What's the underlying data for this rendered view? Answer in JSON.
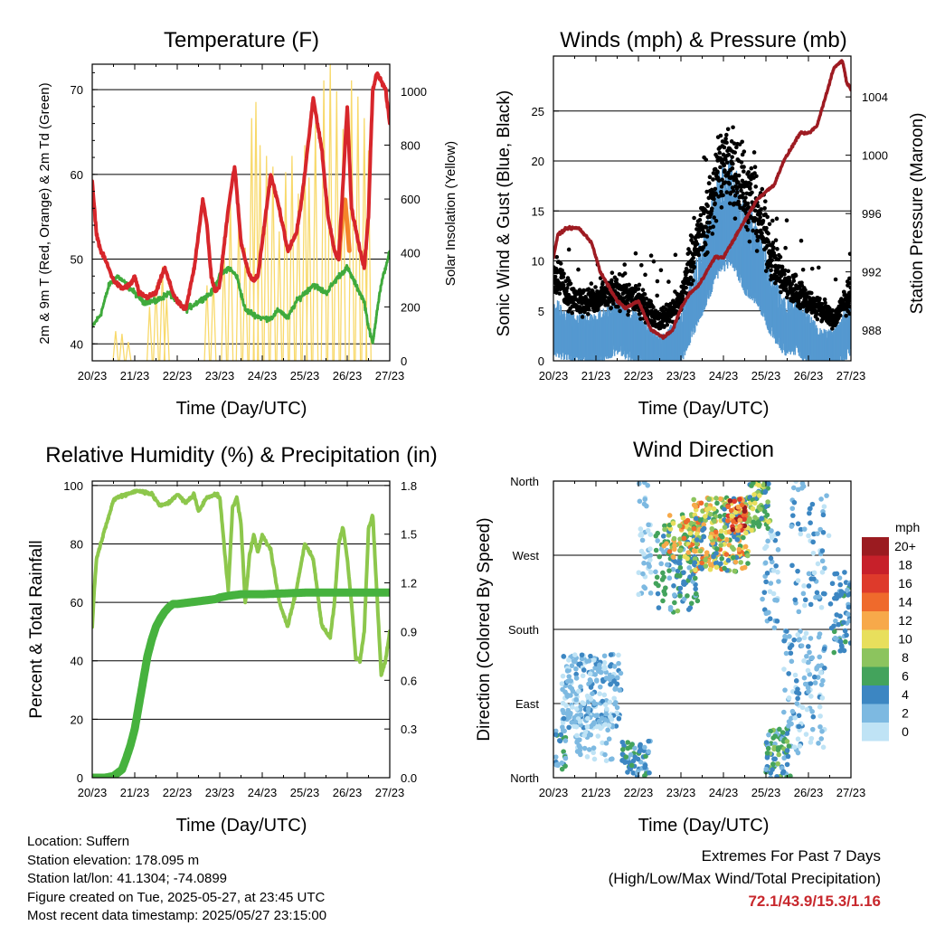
{
  "colors": {
    "t2m": "#d7262b",
    "t9m": "#f4852a",
    "td": "#3faa3c",
    "solar": "#f8d96b",
    "wind": "#5599d0",
    "gust": "#000000",
    "pressure": "#9e1b22",
    "rh": "#8dc74c",
    "rain": "#46b23e",
    "extremes": "#c8282d"
  },
  "x_tick_labels": [
    "20/23",
    "21/23",
    "22/23",
    "23/23",
    "24/23",
    "25/23",
    "26/23",
    "27/23"
  ],
  "info": {
    "location": "Location: Suffern",
    "elevation": "Station elevation: 178.095 m",
    "latlon": "Station lat/lon: 41.1304; -74.0899",
    "created": "Figure created on Tue, 2025-05-27, at 23:45 UTC",
    "recent": "Most recent data timestamp: 2025/05/27 23:15:00"
  },
  "extremes": {
    "line1": "Extremes For Past 7 Days",
    "line2": "(High/Low/Max Wind/Total Precipitation)",
    "values": "72.1/43.9/15.3/1.16"
  },
  "chart_data": [
    {
      "type": "line",
      "id": "temperature",
      "title": "Temperature (F)",
      "xlabel": "Time (Day/UTC)",
      "ylabel": "2m & 9m T (Red, Orange) & 2m Td (Green)",
      "y2label": "Solar Insolation (Yellow)",
      "xlim": [
        0,
        7
      ],
      "ylim": [
        38,
        73
      ],
      "y2lim": [
        0,
        1100
      ],
      "yticks": [
        40,
        50,
        60,
        70
      ],
      "y2ticks": [
        0,
        200,
        400,
        600,
        800,
        1000
      ],
      "grid": true,
      "series": [
        {
          "key": "t2m",
          "axis": "left",
          "x": [
            0,
            0.1,
            0.2,
            0.3,
            0.5,
            0.7,
            0.9,
            1.0,
            1.1,
            1.3,
            1.5,
            1.7,
            1.9,
            2.0,
            2.2,
            2.4,
            2.6,
            2.7,
            2.8,
            2.9,
            3.0,
            3.2,
            3.35,
            3.5,
            3.7,
            3.8,
            3.9,
            4.0,
            4.2,
            4.4,
            4.6,
            4.8,
            4.9,
            5.0,
            5.2,
            5.4,
            5.55,
            5.7,
            5.8,
            5.9,
            6.0,
            6.1,
            6.3,
            6.4,
            6.5,
            6.55,
            6.6,
            6.7,
            6.8,
            6.9,
            7.0
          ],
          "y": [
            59,
            53,
            51,
            50,
            47.5,
            46.5,
            47,
            48,
            46,
            45.5,
            46,
            49,
            46,
            45,
            44,
            49,
            57,
            54,
            48,
            46,
            47,
            56,
            61,
            52,
            48,
            47.5,
            48,
            52,
            60,
            56,
            51,
            53,
            56,
            60,
            69,
            63,
            55,
            51,
            50,
            59,
            68,
            56,
            51,
            49,
            55,
            63,
            70,
            72,
            71,
            70,
            66
          ]
        },
        {
          "key": "t9m",
          "axis": "left",
          "x": [
            5.8,
            5.85,
            5.9,
            5.95,
            6.0,
            6.05
          ],
          "y": [
            50,
            53,
            56,
            57,
            54,
            51
          ]
        },
        {
          "key": "td",
          "axis": "left",
          "x": [
            0,
            0.2,
            0.4,
            0.6,
            0.8,
            1.0,
            1.2,
            1.5,
            1.8,
            2.0,
            2.2,
            2.5,
            2.8,
            3.0,
            3.2,
            3.4,
            3.6,
            4.0,
            4.2,
            4.4,
            4.6,
            4.8,
            5.0,
            5.2,
            5.5,
            5.8,
            6.0,
            6.2,
            6.4,
            6.5,
            6.6,
            6.7,
            6.8,
            6.9,
            7.0
          ],
          "y": [
            42,
            43.5,
            47,
            48,
            47,
            46,
            45,
            45,
            46,
            45,
            44,
            45,
            46,
            48,
            49,
            48,
            44,
            43,
            43,
            44,
            43,
            45,
            46,
            47,
            46,
            48,
            49,
            47,
            45,
            42,
            40,
            44,
            47,
            49,
            51
          ]
        },
        {
          "key": "solar",
          "axis": "right",
          "peaks": [
            [
              0.55,
              110
            ],
            [
              0.7,
              100
            ],
            [
              0.85,
              70
            ],
            [
              1.35,
              200
            ],
            [
              1.5,
              280
            ],
            [
              1.65,
              350
            ],
            [
              1.75,
              230
            ],
            [
              2.7,
              280
            ],
            [
              2.85,
              310
            ],
            [
              3.1,
              420
            ],
            [
              3.25,
              600
            ],
            [
              3.45,
              560
            ],
            [
              3.6,
              420
            ],
            [
              3.75,
              900
            ],
            [
              3.85,
              960
            ],
            [
              3.95,
              800
            ],
            [
              4.1,
              760
            ],
            [
              4.25,
              720
            ],
            [
              4.4,
              480
            ],
            [
              4.55,
              700
            ],
            [
              4.7,
              760
            ],
            [
              4.85,
              620
            ],
            [
              5.0,
              800
            ],
            [
              5.1,
              680
            ],
            [
              5.25,
              880
            ],
            [
              5.45,
              1040
            ],
            [
              5.6,
              1100
            ],
            [
              5.75,
              1000
            ],
            [
              5.9,
              860
            ],
            [
              6.1,
              1040
            ],
            [
              6.25,
              980
            ],
            [
              6.4,
              900
            ],
            [
              6.5,
              780
            ]
          ]
        }
      ]
    },
    {
      "type": "line",
      "id": "winds",
      "title": "Winds (mph) & Pressure (mb)",
      "xlabel": "Time (Day/UTC)",
      "ylabel": "Sonic Wind & Gust (Blue, Black)",
      "y2label": "Station Pressure (Maroon)",
      "xlim": [
        0,
        7
      ],
      "ylim": [
        0,
        30.5
      ],
      "y2lim": [
        985.9,
        1006.8
      ],
      "yticks": [
        0,
        5,
        10,
        15,
        20,
        25
      ],
      "y2ticks": [
        988,
        992,
        996,
        1000,
        1004
      ],
      "grid": true,
      "series": [
        {
          "key": "wind",
          "axis": "left",
          "x": [
            0,
            0.5,
            1.0,
            1.5,
            2.0,
            2.5,
            3.0,
            3.3,
            3.6,
            3.9,
            4.2,
            4.5,
            4.8,
            5.1,
            5.4,
            5.7,
            6.0,
            6.3,
            6.6,
            7.0
          ],
          "y": [
            4,
            3,
            3,
            4,
            3,
            1.5,
            3,
            6,
            9,
            12,
            13,
            10,
            9,
            6,
            4,
            4,
            3,
            2,
            2,
            4
          ]
        },
        {
          "key": "gust",
          "axis": "left",
          "x": [
            0,
            0.5,
            1.0,
            1.5,
            2.0,
            2.5,
            3.0,
            3.3,
            3.6,
            3.9,
            4.2,
            4.5,
            4.8,
            5.1,
            5.4,
            5.7,
            6.0,
            6.3,
            6.6,
            7.0
          ],
          "y": [
            9,
            6,
            6,
            7,
            6,
            4,
            6,
            11,
            14,
            19,
            20,
            17,
            15,
            11,
            8,
            7,
            6,
            5,
            4,
            7
          ]
        },
        {
          "key": "pressure",
          "axis": "right",
          "x": [
            0,
            0.1,
            0.3,
            0.6,
            0.9,
            1.1,
            1.3,
            1.5,
            1.7,
            2.0,
            2.3,
            2.6,
            2.8,
            3.0,
            3.2,
            3.4,
            3.6,
            3.8,
            4.0,
            4.2,
            4.4,
            4.6,
            4.8,
            5.0,
            5.2,
            5.4,
            5.6,
            5.8,
            6.0,
            6.2,
            6.4,
            6.6,
            6.8,
            6.9,
            7.0
          ],
          "y": [
            993,
            994.5,
            995,
            995,
            994,
            992,
            991,
            990,
            989.5,
            990,
            988,
            987.5,
            988,
            989.5,
            990.5,
            991,
            992,
            993,
            993,
            994,
            995,
            996,
            997,
            997.5,
            998,
            999.5,
            1000.5,
            1001.5,
            1001.5,
            1002,
            1004,
            1006,
            1006.5,
            1005,
            1004.5
          ]
        }
      ]
    },
    {
      "type": "line",
      "id": "humidity",
      "title": "Relative Humidity (%) & Precipitation (in)",
      "xlabel": "Time (Day/UTC)",
      "ylabel": "Percent & Total Rainfall",
      "xlim": [
        0,
        7
      ],
      "ylim": [
        0,
        101.5
      ],
      "y2lim": [
        0,
        1.827
      ],
      "yticks": [
        0,
        20,
        40,
        60,
        80,
        100
      ],
      "y2ticks": [
        0.0,
        0.3,
        0.6,
        0.9,
        1.2,
        1.5,
        1.8
      ],
      "y2tick_labels": [
        "0.0",
        "0.3",
        "0.6",
        "0.9",
        "1.2",
        "1.5",
        "1.8"
      ],
      "grid": true,
      "series": [
        {
          "key": "rh",
          "axis": "left",
          "x": [
            0,
            0.05,
            0.1,
            0.2,
            0.3,
            0.4,
            0.5,
            0.6,
            0.8,
            1.0,
            1.2,
            1.4,
            1.6,
            1.8,
            2.0,
            2.2,
            2.4,
            2.5,
            2.7,
            2.9,
            3.0,
            3.2,
            3.3,
            3.4,
            3.5,
            3.6,
            3.7,
            3.8,
            3.9,
            4.0,
            4.2,
            4.4,
            4.6,
            4.8,
            5.0,
            5.2,
            5.4,
            5.6,
            5.7,
            5.8,
            5.9,
            6.0,
            6.1,
            6.2,
            6.3,
            6.4,
            6.5,
            6.6,
            6.8,
            6.9,
            7.0
          ],
          "y": [
            52,
            65,
            75,
            80,
            85,
            90,
            95,
            96,
            97,
            98,
            98,
            97,
            93,
            94,
            97,
            94,
            97,
            91,
            96,
            97,
            96,
            64,
            92,
            96,
            87,
            60,
            76,
            83,
            77,
            83,
            78,
            60,
            52,
            64,
            80,
            75,
            52,
            48,
            60,
            80,
            86,
            75,
            60,
            41,
            40,
            50,
            85,
            90,
            35,
            40,
            50
          ]
        },
        {
          "key": "rain",
          "axis": "right",
          "x": [
            0,
            0.1,
            0.3,
            0.5,
            0.7,
            0.8,
            0.9,
            1.0,
            1.1,
            1.2,
            1.3,
            1.4,
            1.5,
            1.6,
            1.7,
            1.8,
            1.9,
            2.0,
            2.3,
            2.6,
            2.9,
            3.0,
            3.2,
            3.5,
            4.0,
            5.0,
            6.0,
            7.0
          ],
          "y": [
            0,
            0,
            0,
            0.01,
            0.05,
            0.12,
            0.2,
            0.3,
            0.45,
            0.6,
            0.75,
            0.85,
            0.93,
            0.98,
            1.02,
            1.05,
            1.07,
            1.07,
            1.08,
            1.09,
            1.1,
            1.11,
            1.12,
            1.13,
            1.13,
            1.14,
            1.14,
            1.14
          ]
        }
      ]
    },
    {
      "type": "scatter",
      "id": "direction",
      "title": "Wind Direction",
      "xlabel": "Time (Day/UTC)",
      "ylabel": "Direction (Colored By Speed)",
      "xlim": [
        0,
        7
      ],
      "ylim": [
        0,
        360
      ],
      "ytick_labels": [
        "North",
        "East",
        "South",
        "West",
        "North"
      ],
      "grid": true,
      "legend": {
        "title": "mph",
        "labels": [
          "20+",
          "18",
          "16",
          "14",
          "12",
          "10",
          "8",
          "6",
          "4",
          "2",
          "0"
        ],
        "colors": [
          "#9b1b20",
          "#c7202a",
          "#de3a2b",
          "#ef6a2c",
          "#f7a94a",
          "#e8df5c",
          "#8cc45e",
          "#43a35c",
          "#3c86c2",
          "#7db9e1",
          "#bfe3f5"
        ]
      },
      "clusters": [
        {
          "x": [
            0.05,
            0.3
          ],
          "dir": [
            10,
            60
          ],
          "speed": [
            2,
            6
          ],
          "n": 25
        },
        {
          "x": [
            0.2,
            1.6
          ],
          "dir": [
            60,
            150
          ],
          "speed": [
            0,
            4
          ],
          "n": 230
        },
        {
          "x": [
            0.5,
            1.4
          ],
          "dir": [
            20,
            80
          ],
          "speed": [
            0,
            3
          ],
          "n": 60
        },
        {
          "x": [
            1.6,
            2.3
          ],
          "dir": [
            0,
            45
          ],
          "speed": [
            2,
            6
          ],
          "n": 60
        },
        {
          "x": [
            2.0,
            2.3
          ],
          "dir": [
            220,
            360
          ],
          "speed": [
            0,
            3
          ],
          "n": 40
        },
        {
          "x": [
            2.4,
            3.4
          ],
          "dir": [
            200,
            300
          ],
          "speed": [
            2,
            8
          ],
          "n": 120
        },
        {
          "x": [
            2.6,
            3.4
          ],
          "dir": [
            265,
            320
          ],
          "speed": [
            6,
            14
          ],
          "n": 60
        },
        {
          "x": [
            3.3,
            4.6
          ],
          "dir": [
            250,
            340
          ],
          "speed": [
            3,
            14
          ],
          "n": 260
        },
        {
          "x": [
            4.1,
            4.5
          ],
          "dir": [
            300,
            340
          ],
          "speed": [
            10,
            20
          ],
          "n": 40
        },
        {
          "x": [
            4.6,
            5.1
          ],
          "dir": [
            300,
            360
          ],
          "speed": [
            4,
            10
          ],
          "n": 70
        },
        {
          "x": [
            4.9,
            5.3
          ],
          "dir": [
            180,
            300
          ],
          "speed": [
            0,
            4
          ],
          "n": 40
        },
        {
          "x": [
            5.0,
            5.6
          ],
          "dir": [
            0,
            60
          ],
          "speed": [
            2,
            8
          ],
          "n": 80
        },
        {
          "x": [
            5.4,
            6.4
          ],
          "dir": [
            30,
            180
          ],
          "speed": [
            0,
            4
          ],
          "n": 120
        },
        {
          "x": [
            5.6,
            6.5
          ],
          "dir": [
            200,
            360
          ],
          "speed": [
            0,
            5
          ],
          "n": 70
        },
        {
          "x": [
            6.5,
            7.0
          ],
          "dir": [
            150,
            250
          ],
          "speed": [
            2,
            6
          ],
          "n": 60
        }
      ]
    }
  ]
}
